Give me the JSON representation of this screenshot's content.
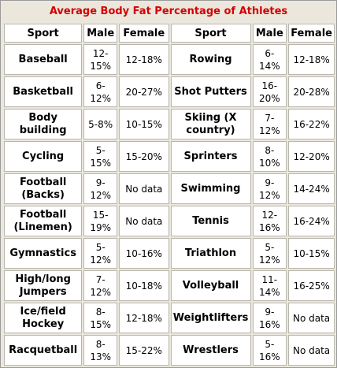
{
  "title": "Average Body Fat Percentage of Athletes",
  "headers": [
    "Sport",
    "Male",
    "Female",
    "Sport",
    "Male",
    "Female"
  ],
  "rows": [
    [
      "Baseball",
      "12-15%",
      "12-18%",
      "Rowing",
      "6-14%",
      "12-18%"
    ],
    [
      "Basketball",
      "6-12%",
      "20-27%",
      "Shot Putters",
      "16-20%",
      "20-28%"
    ],
    [
      "Body building",
      "5-8%",
      "10-15%",
      "Skiing (X country)",
      "7-12%",
      "16-22%"
    ],
    [
      "Cycling",
      "5-15%",
      "15-20%",
      "Sprinters",
      "8-10%",
      "12-20%"
    ],
    [
      "Football (Backs)",
      "9-12%",
      "No data",
      "Swimming",
      "9-12%",
      "14-24%"
    ],
    [
      "Football (Linemen)",
      "15-19%",
      "No data",
      "Tennis",
      "12-16%",
      "16-24%"
    ],
    [
      "Gymnastics",
      "5-12%",
      "10-16%",
      "Triathlon",
      "5-12%",
      "10-15%"
    ],
    [
      "High/long Jumpers",
      "7-12%",
      "10-18%",
      "Volleyball",
      "11-14%",
      "16-25%"
    ],
    [
      "Ice/field Hockey",
      "8-15%",
      "12-18%",
      "Weightlifters",
      "9-16%",
      "No data"
    ],
    [
      "Racquetball",
      "8-13%",
      "15-22%",
      "Wrestlers",
      "5-16%",
      "No data"
    ]
  ],
  "colors": {
    "title": "#d40000",
    "background": "#ebe7dd",
    "cell": "#ffffff",
    "border": "#b9b6ad"
  }
}
